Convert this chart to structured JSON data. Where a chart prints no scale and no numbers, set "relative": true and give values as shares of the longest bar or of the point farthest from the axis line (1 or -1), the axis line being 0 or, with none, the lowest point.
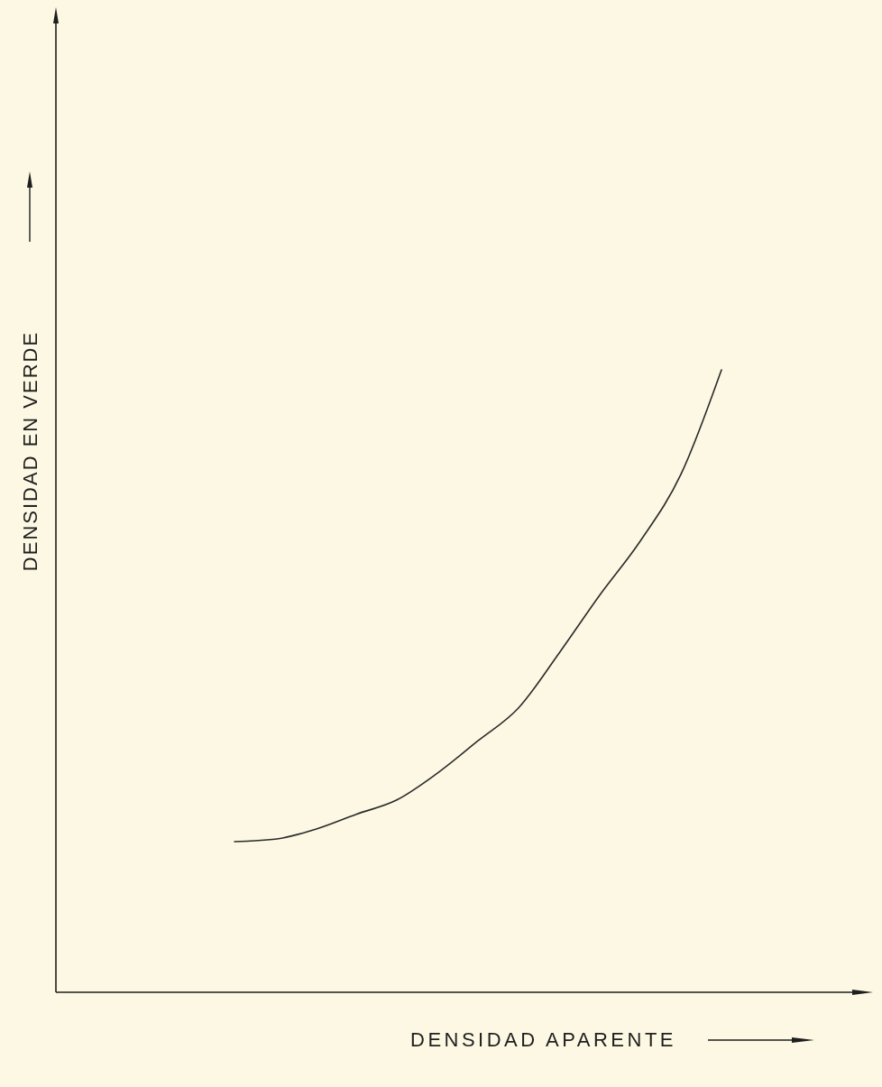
{
  "chart_data": {
    "type": "line",
    "xlabel": "DENSIDAD APARENTE",
    "ylabel": "DENSIDAD EN VERDE",
    "relative": true,
    "color": "#2a2a2a",
    "categories": [
      null,
      null,
      null,
      null,
      null,
      null,
      null,
      null,
      null,
      null,
      null,
      null,
      null,
      null,
      null,
      null,
      null,
      null,
      null,
      null
    ],
    "values": [
      null,
      null,
      null,
      null,
      0.242,
      0.246,
      0.262,
      0.286,
      0.309,
      0.352,
      0.404,
      0.457,
      0.545,
      0.638,
      0.725,
      0.832,
      1,
      null,
      null,
      null
    ]
  }
}
